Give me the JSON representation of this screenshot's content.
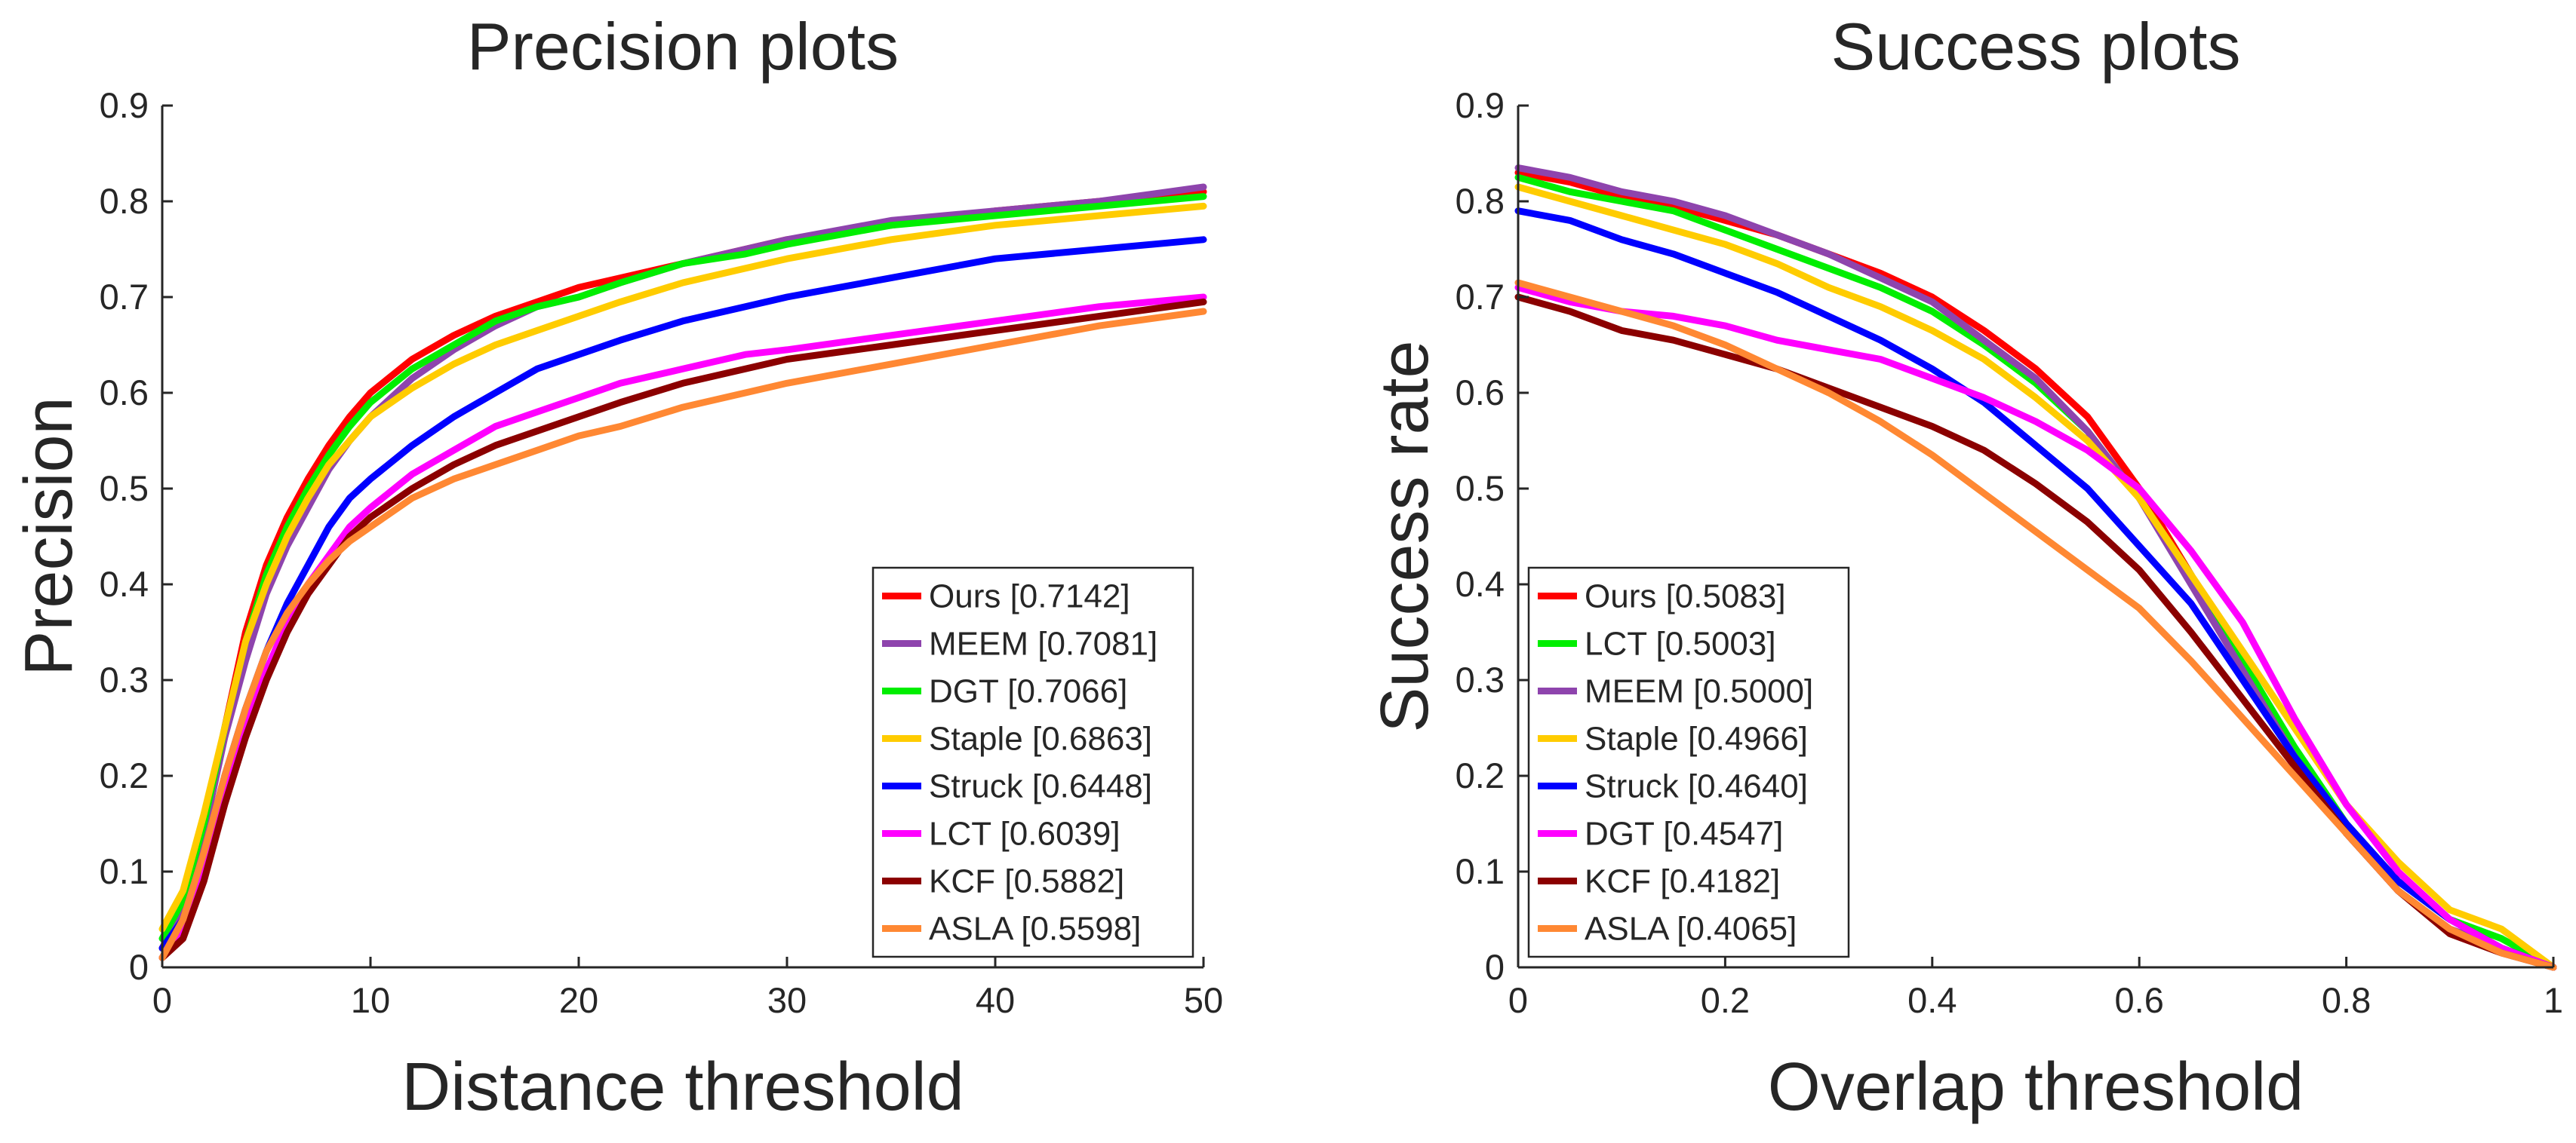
{
  "chart_data": [
    {
      "type": "line",
      "title": "Precision plots",
      "xlabel": "Distance threshold",
      "ylabel": "Precision",
      "xlim": [
        0,
        50
      ],
      "ylim": [
        0,
        0.9
      ],
      "xticks": [
        0,
        10,
        20,
        30,
        40,
        50
      ],
      "yticks": [
        0,
        0.1,
        0.2,
        0.3,
        0.4,
        0.5,
        0.6,
        0.7,
        0.8,
        0.9
      ],
      "xtick_labels": [
        "0",
        "10",
        "20",
        "30",
        "40",
        "50"
      ],
      "ytick_labels": [
        "0",
        "0.1",
        "0.2",
        "0.3",
        "0.4",
        "0.5",
        "0.6",
        "0.7",
        "0.8",
        "0.9"
      ],
      "legend_position": "bottom-right",
      "x": [
        0,
        1,
        2,
        3,
        4,
        5,
        6,
        7,
        8,
        9,
        10,
        12,
        14,
        16,
        18,
        20,
        22,
        25,
        28,
        30,
        35,
        40,
        45,
        50
      ],
      "series": [
        {
          "name": "Ours",
          "legend": "Ours [0.7142]",
          "color": "#ff0000",
          "values": [
            0.02,
            0.06,
            0.15,
            0.25,
            0.35,
            0.42,
            0.47,
            0.51,
            0.545,
            0.575,
            0.6,
            0.635,
            0.66,
            0.68,
            0.695,
            0.71,
            0.72,
            0.735,
            0.75,
            0.76,
            0.775,
            0.79,
            0.8,
            0.81
          ]
        },
        {
          "name": "MEEM",
          "legend": "MEEM [0.7081]",
          "color": "#8e44ad",
          "values": [
            0.02,
            0.06,
            0.14,
            0.24,
            0.32,
            0.39,
            0.44,
            0.48,
            0.52,
            0.55,
            0.575,
            0.615,
            0.645,
            0.67,
            0.69,
            0.7,
            0.715,
            0.735,
            0.75,
            0.76,
            0.78,
            0.79,
            0.8,
            0.815
          ]
        },
        {
          "name": "DGT",
          "legend": "DGT [0.7066]",
          "color": "#00ee00",
          "values": [
            0.03,
            0.07,
            0.15,
            0.25,
            0.34,
            0.41,
            0.46,
            0.5,
            0.535,
            0.565,
            0.59,
            0.625,
            0.65,
            0.675,
            0.69,
            0.7,
            0.715,
            0.735,
            0.745,
            0.755,
            0.775,
            0.785,
            0.795,
            0.805
          ]
        },
        {
          "name": "Staple",
          "legend": "Staple [0.6863]",
          "color": "#ffcc00",
          "values": [
            0.04,
            0.08,
            0.16,
            0.25,
            0.34,
            0.4,
            0.45,
            0.49,
            0.525,
            0.55,
            0.575,
            0.605,
            0.63,
            0.65,
            0.665,
            0.68,
            0.695,
            0.715,
            0.73,
            0.74,
            0.76,
            0.775,
            0.785,
            0.795
          ]
        },
        {
          "name": "Struck",
          "legend": "Struck [0.6448]",
          "color": "#0000ff",
          "values": [
            0.02,
            0.05,
            0.12,
            0.2,
            0.27,
            0.33,
            0.38,
            0.42,
            0.46,
            0.49,
            0.51,
            0.545,
            0.575,
            0.6,
            0.625,
            0.64,
            0.655,
            0.675,
            0.69,
            0.7,
            0.72,
            0.74,
            0.75,
            0.76
          ]
        },
        {
          "name": "LCT",
          "legend": "LCT [0.6039]",
          "color": "#ff00ff",
          "values": [
            0.01,
            0.04,
            0.1,
            0.18,
            0.25,
            0.31,
            0.36,
            0.4,
            0.43,
            0.46,
            0.48,
            0.515,
            0.54,
            0.565,
            0.58,
            0.595,
            0.61,
            0.625,
            0.64,
            0.645,
            0.66,
            0.675,
            0.69,
            0.7
          ]
        },
        {
          "name": "KCF",
          "legend": "KCF [0.5882]",
          "color": "#8b0000",
          "values": [
            0.01,
            0.03,
            0.09,
            0.17,
            0.24,
            0.3,
            0.35,
            0.39,
            0.42,
            0.45,
            0.47,
            0.5,
            0.525,
            0.545,
            0.56,
            0.575,
            0.59,
            0.61,
            0.625,
            0.635,
            0.65,
            0.665,
            0.68,
            0.695
          ]
        },
        {
          "name": "ASLA",
          "legend": "ASLA [0.5598]",
          "color": "#ff8833",
          "values": [
            0.01,
            0.05,
            0.12,
            0.2,
            0.27,
            0.33,
            0.37,
            0.4,
            0.425,
            0.445,
            0.46,
            0.49,
            0.51,
            0.525,
            0.54,
            0.555,
            0.565,
            0.585,
            0.6,
            0.61,
            0.63,
            0.65,
            0.67,
            0.685
          ]
        }
      ]
    },
    {
      "type": "line",
      "title": "Success plots",
      "xlabel": "Overlap threshold",
      "ylabel": "Success rate",
      "xlim": [
        0,
        1
      ],
      "ylim": [
        0,
        0.9
      ],
      "xticks": [
        0,
        0.2,
        0.4,
        0.6,
        0.8,
        1
      ],
      "yticks": [
        0,
        0.1,
        0.2,
        0.3,
        0.4,
        0.5,
        0.6,
        0.7,
        0.8,
        0.9
      ],
      "xtick_labels": [
        "0",
        "0.2",
        "0.4",
        "0.6",
        "0.8",
        "1"
      ],
      "ytick_labels": [
        "0",
        "0.1",
        "0.2",
        "0.3",
        "0.4",
        "0.5",
        "0.6",
        "0.7",
        "0.8",
        "0.9"
      ],
      "legend_position": "bottom-left",
      "x": [
        0,
        0.05,
        0.1,
        0.15,
        0.2,
        0.25,
        0.3,
        0.35,
        0.4,
        0.45,
        0.5,
        0.55,
        0.6,
        0.65,
        0.7,
        0.75,
        0.8,
        0.85,
        0.9,
        0.95,
        1.0
      ],
      "series": [
        {
          "name": "Ours",
          "legend": "Ours [0.5083]",
          "color": "#ff0000",
          "values": [
            0.83,
            0.82,
            0.805,
            0.795,
            0.78,
            0.765,
            0.745,
            0.725,
            0.7,
            0.665,
            0.625,
            0.575,
            0.5,
            0.41,
            0.31,
            0.22,
            0.14,
            0.08,
            0.04,
            0.02,
            0.0
          ]
        },
        {
          "name": "LCT",
          "legend": "LCT [0.5003]",
          "color": "#00ee00",
          "values": [
            0.825,
            0.81,
            0.8,
            0.79,
            0.77,
            0.75,
            0.73,
            0.71,
            0.685,
            0.65,
            0.61,
            0.56,
            0.49,
            0.41,
            0.32,
            0.23,
            0.15,
            0.09,
            0.05,
            0.03,
            0.0
          ]
        },
        {
          "name": "MEEM",
          "legend": "MEEM [0.5000]",
          "color": "#8e44ad",
          "values": [
            0.835,
            0.825,
            0.81,
            0.8,
            0.785,
            0.765,
            0.745,
            0.72,
            0.695,
            0.655,
            0.615,
            0.56,
            0.49,
            0.4,
            0.31,
            0.22,
            0.14,
            0.08,
            0.04,
            0.02,
            0.0
          ]
        },
        {
          "name": "Staple",
          "legend": "Staple [0.4966]",
          "color": "#ffcc00",
          "values": [
            0.815,
            0.8,
            0.785,
            0.77,
            0.755,
            0.735,
            0.71,
            0.69,
            0.665,
            0.635,
            0.595,
            0.55,
            0.49,
            0.41,
            0.33,
            0.25,
            0.17,
            0.11,
            0.06,
            0.04,
            0.0
          ]
        },
        {
          "name": "Struck",
          "legend": "Struck [0.4640]",
          "color": "#0000ff",
          "values": [
            0.79,
            0.78,
            0.76,
            0.745,
            0.725,
            0.705,
            0.68,
            0.655,
            0.625,
            0.59,
            0.545,
            0.5,
            0.44,
            0.38,
            0.3,
            0.22,
            0.15,
            0.09,
            0.05,
            0.02,
            0.0
          ]
        },
        {
          "name": "DGT",
          "legend": "DGT [0.4547]",
          "color": "#ff00ff",
          "values": [
            0.71,
            0.695,
            0.685,
            0.68,
            0.67,
            0.655,
            0.645,
            0.635,
            0.615,
            0.595,
            0.57,
            0.54,
            0.5,
            0.435,
            0.36,
            0.26,
            0.17,
            0.1,
            0.05,
            0.02,
            0.0
          ]
        },
        {
          "name": "KCF",
          "legend": "KCF [0.4182]",
          "color": "#8b0000",
          "values": [
            0.7,
            0.685,
            0.665,
            0.655,
            0.64,
            0.625,
            0.605,
            0.585,
            0.565,
            0.54,
            0.505,
            0.465,
            0.415,
            0.35,
            0.28,
            0.21,
            0.14,
            0.08,
            0.035,
            0.015,
            0.0
          ]
        },
        {
          "name": "ASLA",
          "legend": "ASLA [0.4065]",
          "color": "#ff8833",
          "values": [
            0.715,
            0.7,
            0.685,
            0.67,
            0.65,
            0.625,
            0.6,
            0.57,
            0.535,
            0.495,
            0.455,
            0.415,
            0.375,
            0.32,
            0.26,
            0.2,
            0.14,
            0.08,
            0.04,
            0.015,
            0.0
          ]
        }
      ]
    }
  ]
}
